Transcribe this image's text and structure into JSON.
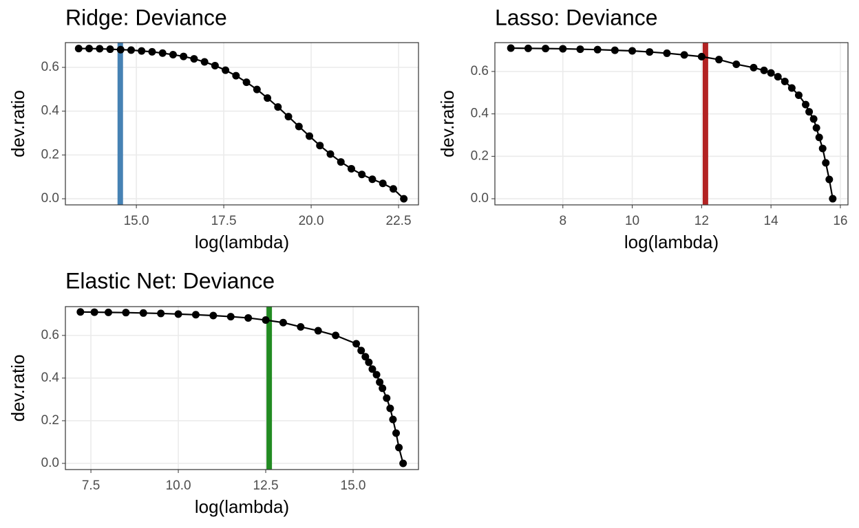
{
  "chart_data": [
    {
      "type": "line",
      "title": "Ridge: Deviance",
      "x_label": "log(lambda)",
      "y_label": "dev.ratio",
      "x": [
        13.35,
        13.65,
        13.95,
        14.25,
        14.55,
        14.85,
        15.15,
        15.45,
        15.75,
        16.05,
        16.35,
        16.65,
        16.95,
        17.25,
        17.55,
        17.85,
        18.15,
        18.45,
        18.75,
        19.05,
        19.35,
        19.65,
        19.95,
        20.25,
        20.55,
        20.85,
        21.15,
        21.45,
        21.75,
        22.05,
        22.35,
        22.65
      ],
      "values": [
        0.686,
        0.686,
        0.685,
        0.683,
        0.681,
        0.679,
        0.675,
        0.671,
        0.665,
        0.658,
        0.65,
        0.639,
        0.625,
        0.608,
        0.587,
        0.562,
        0.532,
        0.499,
        0.46,
        0.419,
        0.375,
        0.33,
        0.286,
        0.243,
        0.204,
        0.168,
        0.137,
        0.111,
        0.089,
        0.07,
        0.045,
        0
      ],
      "color": "#000000",
      "vline": {
        "value": 14.54,
        "color": "#4682b4"
      },
      "xlim": [
        12.97,
        23.07
      ],
      "xticks": [
        {
          "value": 15,
          "label": "15.0"
        },
        17.5,
        {
          "value": 20,
          "label": "20.0"
        },
        22.5
      ],
      "ylim": [
        -0.028,
        0.713
      ],
      "yticks": [
        {
          "value": 0,
          "label": "0.0"
        },
        0.2,
        0.4,
        0.6
      ],
      "grid": true
    },
    {
      "type": "line",
      "title": "Lasso: Deviance",
      "x_label": "log(lambda)",
      "y_label": "dev.ratio",
      "x": [
        6.5,
        7.0,
        7.5,
        8.0,
        8.5,
        9.0,
        9.5,
        10.0,
        10.5,
        11.0,
        11.5,
        12.0,
        12.5,
        13.0,
        13.5,
        13.8,
        14.0,
        14.2,
        14.4,
        14.6,
        14.8,
        15.0,
        15.1,
        15.23,
        15.31,
        15.39,
        15.49,
        15.58,
        15.68,
        15.78
      ],
      "values": [
        0.71,
        0.709,
        0.708,
        0.707,
        0.705,
        0.703,
        0.7,
        0.697,
        0.692,
        0.686,
        0.678,
        0.67,
        0.656,
        0.634,
        0.618,
        0.605,
        0.593,
        0.575,
        0.553,
        0.522,
        0.488,
        0.444,
        0.41,
        0.376,
        0.334,
        0.289,
        0.237,
        0.169,
        0.091,
        0
      ],
      "color": "#000000",
      "vline": {
        "value": 12.11,
        "color": "#b22222"
      },
      "xlim": [
        6.04,
        16.22
      ],
      "xticks": [
        8,
        10,
        12,
        14,
        16
      ],
      "ylim": [
        -0.029,
        0.736
      ],
      "yticks": [
        {
          "value": 0,
          "label": "0.0"
        },
        0.2,
        0.4,
        0.6
      ],
      "grid": true
    },
    {
      "type": "line",
      "title": "Elastic Net: Deviance",
      "x_label": "log(lambda)",
      "y_label": "dev.ratio",
      "x": [
        7.2,
        7.6,
        8.0,
        8.5,
        9.0,
        9.5,
        10.0,
        10.5,
        11.0,
        11.5,
        12.0,
        12.5,
        13.0,
        13.5,
        14.0,
        14.5,
        15.09,
        15.23,
        15.35,
        15.45,
        15.55,
        15.67,
        15.76,
        15.84,
        15.96,
        16.06,
        16.14,
        16.23,
        16.31,
        16.43
      ],
      "values": [
        0.71,
        0.709,
        0.708,
        0.707,
        0.705,
        0.703,
        0.7,
        0.697,
        0.693,
        0.688,
        0.682,
        0.672,
        0.66,
        0.64,
        0.622,
        0.6,
        0.561,
        0.529,
        0.5,
        0.474,
        0.442,
        0.416,
        0.381,
        0.352,
        0.306,
        0.258,
        0.206,
        0.142,
        0.074,
        0
      ],
      "color": "#000000",
      "vline": {
        "value": 12.6,
        "color": "#228b22"
      },
      "xlim": [
        6.77,
        16.87
      ],
      "xticks": [
        7.5,
        {
          "value": 10,
          "label": "10.0"
        },
        12.5,
        {
          "value": 15,
          "label": "15.0"
        }
      ],
      "ylim": [
        -0.029,
        0.735
      ],
      "yticks": [
        {
          "value": 0,
          "label": "0.0"
        },
        0.2,
        0.4,
        0.6
      ],
      "grid": true
    }
  ]
}
